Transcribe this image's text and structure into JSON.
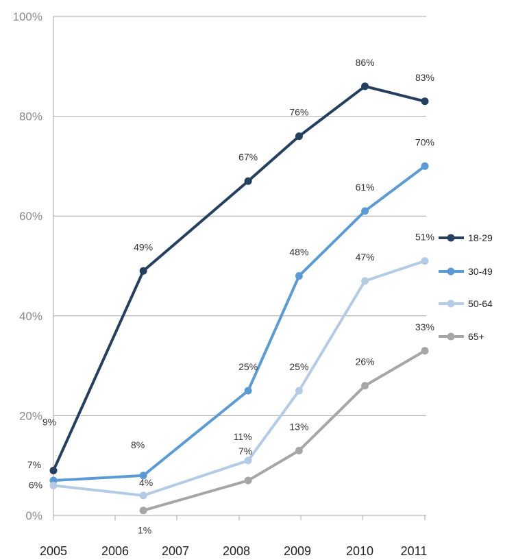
{
  "chart_data": {
    "type": "line",
    "x": [
      "2005",
      "2006",
      "2007",
      "2008",
      "2009",
      "2010",
      "2011"
    ],
    "y_ticks": [
      "0%",
      "20%",
      "40%",
      "60%",
      "80%",
      "100%"
    ],
    "ylim": [
      0,
      100
    ],
    "grid": true,
    "legend_position": "right",
    "series": [
      {
        "name": "18-29",
        "color": "#243f60",
        "points": [
          {
            "x": 2005.0,
            "y": 9,
            "label": "9%"
          },
          {
            "x": 2006.5,
            "y": 49,
            "label": "49%"
          },
          {
            "x": 2008.25,
            "y": 67,
            "label": "67%"
          },
          {
            "x": 2009.1,
            "y": 76,
            "label": "76%"
          },
          {
            "x": 2010.2,
            "y": 86,
            "label": "86%"
          },
          {
            "x": 2011.2,
            "y": 83,
            "label": "83%"
          }
        ]
      },
      {
        "name": "30-49",
        "color": "#5b9bd5",
        "points": [
          {
            "x": 2005.0,
            "y": 7,
            "label": "7%"
          },
          {
            "x": 2006.5,
            "y": 8,
            "label": "8%"
          },
          {
            "x": 2008.25,
            "y": 25,
            "label": "25%"
          },
          {
            "x": 2009.1,
            "y": 48,
            "label": "48%"
          },
          {
            "x": 2010.2,
            "y": 61,
            "label": "61%"
          },
          {
            "x": 2011.2,
            "y": 70,
            "label": "70%"
          }
        ]
      },
      {
        "name": "50-64",
        "color": "#b4cbe6",
        "points": [
          {
            "x": 2005.0,
            "y": 6,
            "label": "6%"
          },
          {
            "x": 2006.5,
            "y": 4,
            "label": "4%"
          },
          {
            "x": 2008.25,
            "y": 11,
            "label": "11%"
          },
          {
            "x": 2009.1,
            "y": 25,
            "label": "25%"
          },
          {
            "x": 2010.2,
            "y": 47,
            "label": "47%"
          },
          {
            "x": 2011.2,
            "y": 51,
            "label": "51%"
          }
        ]
      },
      {
        "name": "65+",
        "color": "#a6a6a6",
        "points": [
          {
            "x": 2006.5,
            "y": 1,
            "label": "1%"
          },
          {
            "x": 2008.25,
            "y": 7,
            "label": "7%"
          },
          {
            "x": 2009.1,
            "y": 13,
            "label": "13%"
          },
          {
            "x": 2010.2,
            "y": 26,
            "label": "26%"
          },
          {
            "x": 2011.2,
            "y": 33,
            "label": "33%"
          }
        ]
      }
    ]
  }
}
